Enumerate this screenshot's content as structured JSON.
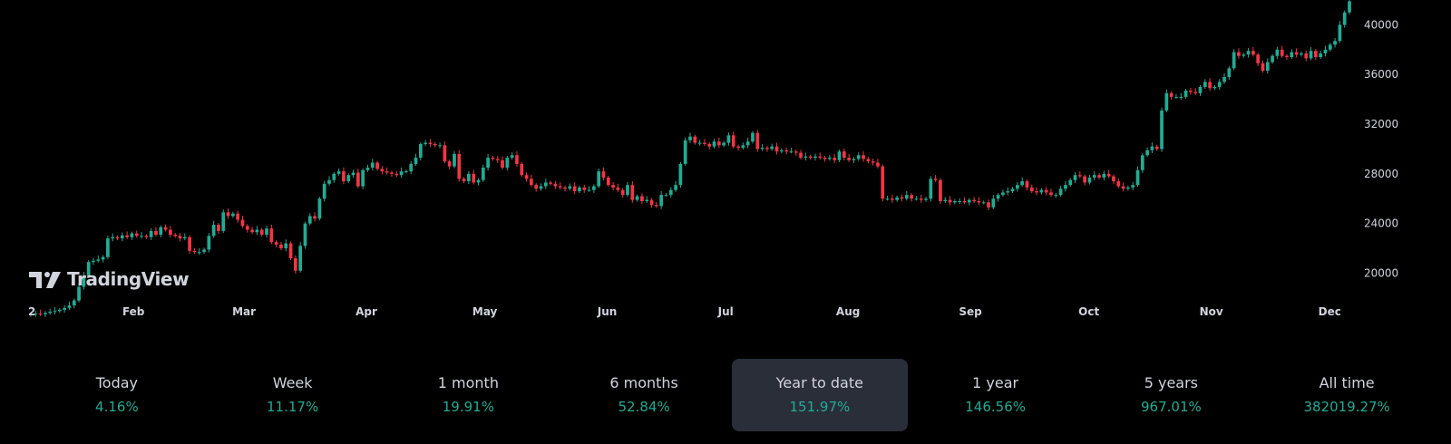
{
  "brand": {
    "name": "TradingView",
    "logo_icon": "tradingview-logo-icon"
  },
  "colors": {
    "up": "#22ab94",
    "down": "#f23645",
    "background": "#000000",
    "text": "#d1d4dc",
    "active_period_bg": "#2a2e39"
  },
  "chart_data": {
    "type": "candlestick",
    "title": "",
    "xlabel": "",
    "ylabel": "",
    "ylim": [
      15000,
      42000
    ],
    "y_ticks": [
      "20000",
      "24000",
      "28000",
      "32000",
      "36000",
      "40000"
    ],
    "x_ticks": [
      "2",
      "Feb",
      "Mar",
      "Apr",
      "May",
      "Jun",
      "Jul",
      "Aug",
      "Sep",
      "Oct",
      "Nov",
      "Dec"
    ],
    "y_axis_position": "right",
    "grid": false,
    "legend": "none",
    "close_series": [
      16700,
      16750,
      16700,
      16800,
      16900,
      16950,
      17050,
      17200,
      17400,
      17800,
      18900,
      19800,
      20900,
      21000,
      21100,
      21300,
      22800,
      22900,
      22800,
      23050,
      22900,
      23200,
      23000,
      23000,
      22900,
      23400,
      23100,
      23700,
      23500,
      23100,
      23000,
      22800,
      22900,
      21800,
      21700,
      21700,
      21900,
      23000,
      23900,
      23400,
      24900,
      24600,
      24800,
      24300,
      23800,
      23500,
      23300,
      23500,
      23100,
      23600,
      22500,
      22300,
      22000,
      22400,
      21200,
      20200,
      22200,
      24000,
      24600,
      24400,
      26000,
      27200,
      27500,
      28000,
      28200,
      27400,
      27900,
      28100,
      27000,
      28300,
      28500,
      28900,
      28400,
      28200,
      28100,
      28000,
      27900,
      28200,
      28200,
      28800,
      29300,
      30400,
      30500,
      30400,
      30300,
      30300,
      29000,
      28600,
      29600,
      27600,
      27400,
      28000,
      27300,
      27500,
      28500,
      29300,
      29200,
      29100,
      28500,
      29300,
      29500,
      28800,
      27900,
      27600,
      27100,
      26800,
      27000,
      27300,
      27200,
      27000,
      26900,
      26800,
      27000,
      26600,
      26900,
      26700,
      26700,
      27000,
      28200,
      27700,
      27100,
      26900,
      26700,
      26300,
      27100,
      25900,
      26200,
      25800,
      25900,
      25500,
      25400,
      26300,
      26300,
      26700,
      27100,
      28800,
      30700,
      31000,
      30500,
      30500,
      30400,
      30200,
      30600,
      30300,
      30500,
      31100,
      30200,
      30100,
      30300,
      30600,
      31300,
      30000,
      30100,
      30000,
      30200,
      29800,
      29900,
      29800,
      29800,
      29700,
      29300,
      29400,
      29300,
      29400,
      29300,
      29200,
      29300,
      29100,
      29800,
      29300,
      29100,
      29200,
      29500,
      29200,
      29000,
      28900,
      28600,
      26000,
      26000,
      25900,
      26100,
      26000,
      26300,
      26000,
      26000,
      25900,
      26000,
      27600,
      27500,
      25800,
      25900,
      25700,
      25800,
      25800,
      25700,
      25900,
      25800,
      25700,
      25700,
      25300,
      26000,
      26300,
      26500,
      26600,
      26800,
      27100,
      27400,
      26900,
      26600,
      26500,
      26700,
      26500,
      26300,
      26300,
      26800,
      27100,
      27500,
      27900,
      27800,
      27300,
      27700,
      27900,
      27700,
      28000,
      27800,
      27400,
      27000,
      26800,
      26900,
      27100,
      28300,
      29500,
      29900,
      30200,
      30000,
      33100,
      34500,
      34200,
      34200,
      34200,
      34700,
      34600,
      34500,
      35000,
      35400,
      34900,
      35000,
      35400,
      35800,
      36500,
      37800,
      37500,
      37600,
      37900,
      37600,
      36900,
      36300,
      37000,
      37500,
      38000,
      37500,
      37400,
      37800,
      37600,
      37700,
      37300,
      37900,
      37400,
      37700,
      38000,
      38400,
      38700,
      40000,
      41000,
      41900
    ]
  },
  "periods": [
    {
      "label": "Today",
      "value": "4.16%"
    },
    {
      "label": "Week",
      "value": "11.17%"
    },
    {
      "label": "1 month",
      "value": "19.91%"
    },
    {
      "label": "6 months",
      "value": "52.84%"
    },
    {
      "label": "Year to date",
      "value": "151.97%",
      "active": true
    },
    {
      "label": "1 year",
      "value": "146.56%"
    },
    {
      "label": "5 years",
      "value": "967.01%"
    },
    {
      "label": "All time",
      "value": "382019.27%"
    }
  ]
}
